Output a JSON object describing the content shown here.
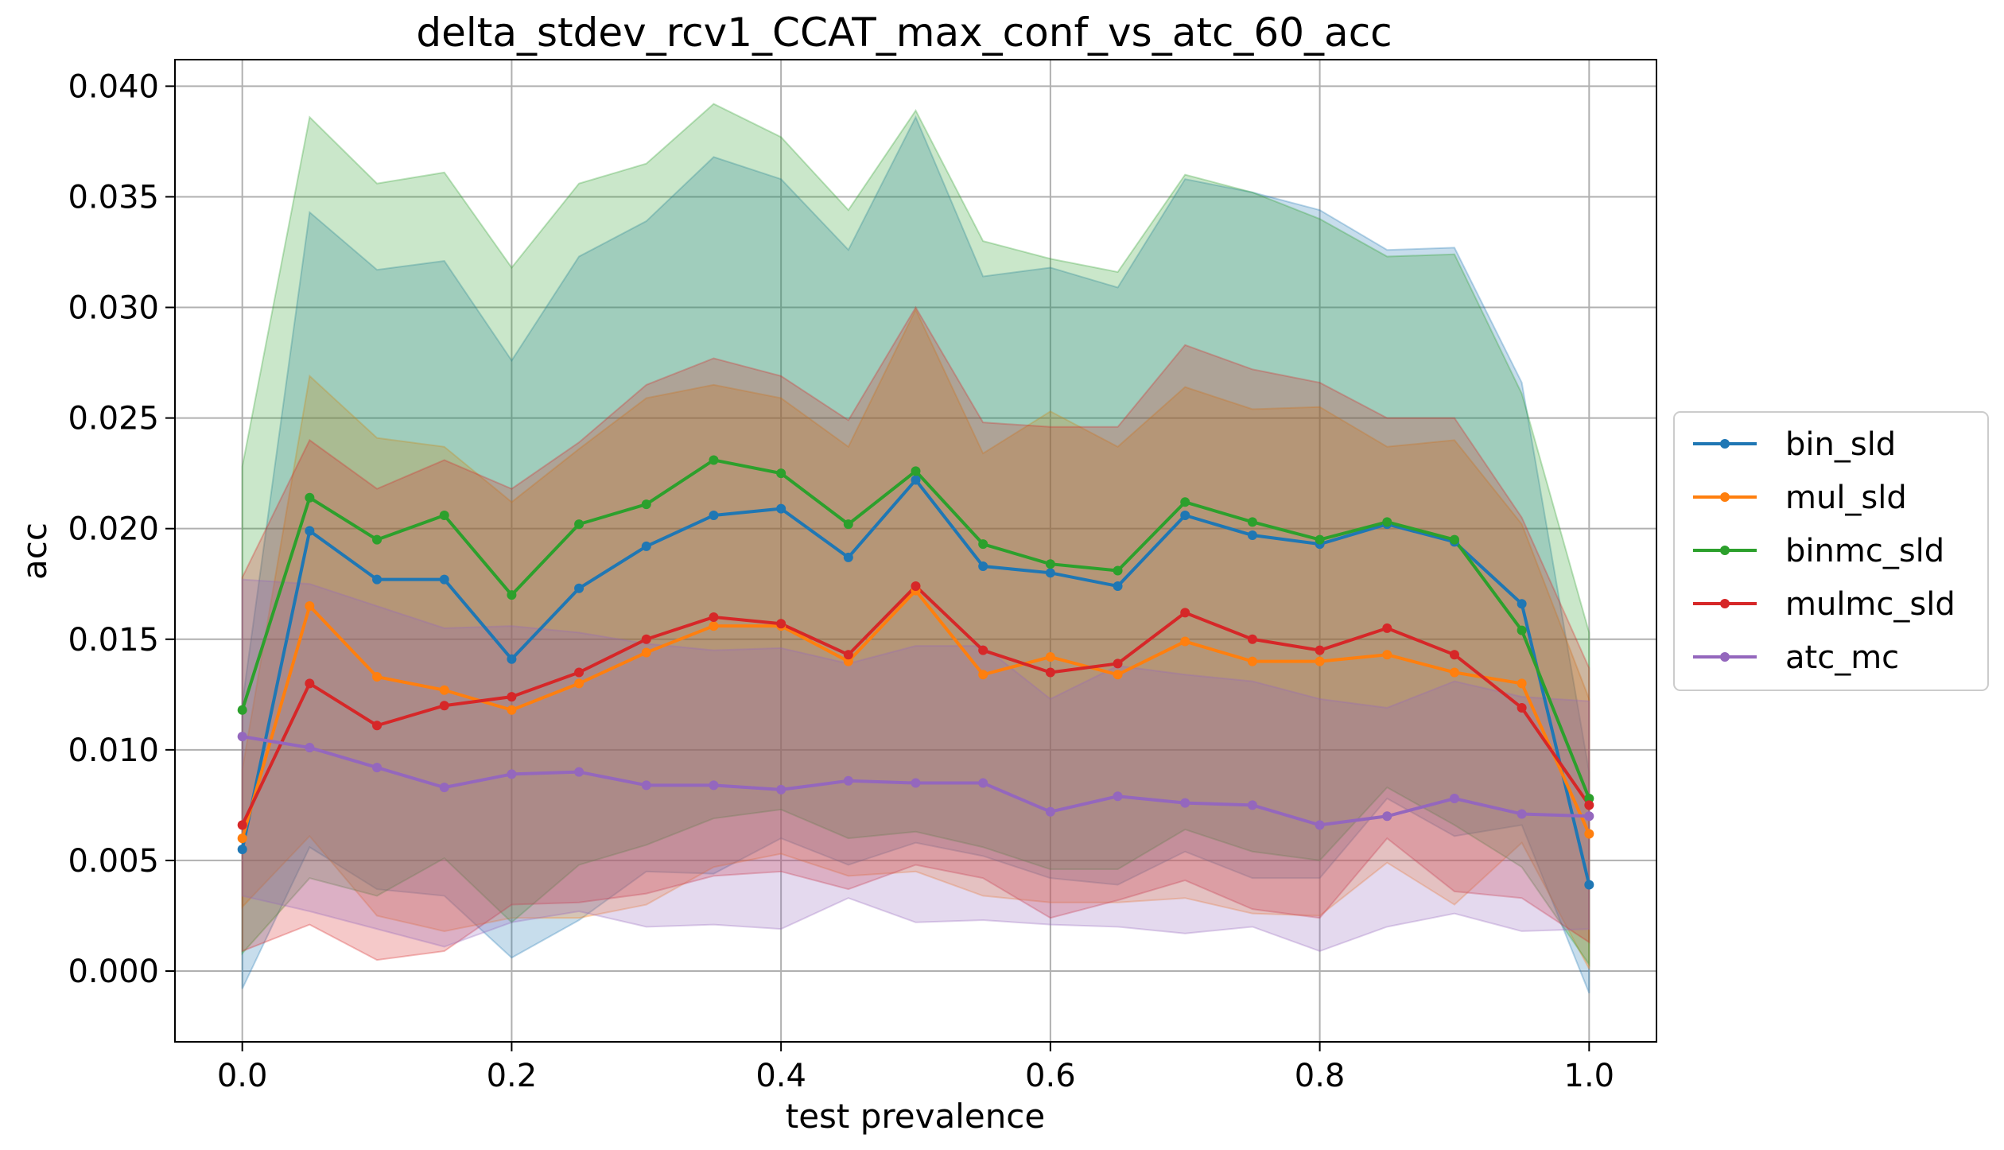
{
  "chart_data": {
    "type": "line",
    "title": "delta_stdev_rcv1_CCAT_max_conf_vs_atc_60_acc",
    "xlabel": "test prevalence",
    "ylabel": "acc",
    "xlim": [
      -0.05,
      1.05
    ],
    "ylim": [
      -0.0032,
      0.0412
    ],
    "grid": true,
    "legend_position": "right",
    "x": [
      0.0,
      0.05,
      0.1,
      0.15,
      0.2,
      0.25,
      0.3,
      0.35,
      0.4,
      0.45,
      0.5,
      0.55,
      0.6,
      0.65,
      0.7,
      0.75,
      0.8,
      0.85,
      0.9,
      0.95,
      1.0
    ],
    "x_ticks": [
      0.0,
      0.2,
      0.4,
      0.6,
      0.8,
      1.0
    ],
    "x_tick_labels": [
      "0.0",
      "0.2",
      "0.4",
      "0.6",
      "0.8",
      "1.0"
    ],
    "y_ticks": [
      0.0,
      0.005,
      0.01,
      0.015,
      0.02,
      0.025,
      0.03,
      0.035,
      0.04
    ],
    "y_tick_labels": [
      "0.000",
      "0.005",
      "0.010",
      "0.015",
      "0.020",
      "0.025",
      "0.030",
      "0.035",
      "0.040"
    ],
    "series": [
      {
        "name": "bin_sld",
        "color": "#1f77b4",
        "values": [
          0.0055,
          0.0199,
          0.0177,
          0.0177,
          0.0141,
          0.0173,
          0.0192,
          0.0206,
          0.0209,
          0.0187,
          0.0222,
          0.0183,
          0.018,
          0.0174,
          0.0206,
          0.0197,
          0.0193,
          0.0202,
          0.0194,
          0.0166,
          0.0039
        ],
        "upper": [
          0.0121,
          0.0343,
          0.0317,
          0.0321,
          0.0276,
          0.0323,
          0.0339,
          0.0368,
          0.0358,
          0.0326,
          0.0386,
          0.0314,
          0.0318,
          0.0309,
          0.0358,
          0.0352,
          0.0344,
          0.0326,
          0.0327,
          0.0266,
          0.009
        ],
        "lower": [
          -0.0008,
          0.0056,
          0.0037,
          0.0034,
          0.0006,
          0.0023,
          0.0045,
          0.0044,
          0.006,
          0.0048,
          0.0058,
          0.0052,
          0.0042,
          0.0039,
          0.0054,
          0.0042,
          0.0042,
          0.0078,
          0.0061,
          0.0066,
          -0.001
        ]
      },
      {
        "name": "mul_sld",
        "color": "#ff7f0e",
        "values": [
          0.006,
          0.0165,
          0.0133,
          0.0127,
          0.0118,
          0.013,
          0.0144,
          0.0156,
          0.0156,
          0.014,
          0.0172,
          0.0134,
          0.0142,
          0.0134,
          0.0149,
          0.014,
          0.014,
          0.0143,
          0.0135,
          0.013,
          0.0062
        ],
        "upper": [
          0.0091,
          0.0269,
          0.0241,
          0.0237,
          0.0212,
          0.0236,
          0.0259,
          0.0265,
          0.0259,
          0.0237,
          0.0299,
          0.0234,
          0.0253,
          0.0237,
          0.0264,
          0.0254,
          0.0255,
          0.0237,
          0.024,
          0.0202,
          0.0123
        ],
        "lower": [
          0.0029,
          0.0061,
          0.0025,
          0.0018,
          0.0024,
          0.0024,
          0.003,
          0.0047,
          0.0053,
          0.0043,
          0.0045,
          0.0034,
          0.0031,
          0.0031,
          0.0033,
          0.0026,
          0.0025,
          0.0049,
          0.003,
          0.0058,
          0.0001
        ]
      },
      {
        "name": "binmc_sld",
        "color": "#2ca02c",
        "values": [
          0.0118,
          0.0214,
          0.0195,
          0.0206,
          0.017,
          0.0202,
          0.0211,
          0.0231,
          0.0225,
          0.0202,
          0.0226,
          0.0193,
          0.0184,
          0.0181,
          0.0212,
          0.0203,
          0.0195,
          0.0203,
          0.0195,
          0.0154,
          0.0078
        ],
        "upper": [
          0.0228,
          0.0386,
          0.0356,
          0.0361,
          0.0318,
          0.0356,
          0.0365,
          0.0392,
          0.0377,
          0.0344,
          0.0389,
          0.033,
          0.0322,
          0.0316,
          0.036,
          0.0352,
          0.034,
          0.0323,
          0.0324,
          0.0261,
          0.0153
        ],
        "lower": [
          0.0008,
          0.0042,
          0.0034,
          0.0051,
          0.0022,
          0.0048,
          0.0057,
          0.0069,
          0.0073,
          0.006,
          0.0063,
          0.0056,
          0.0046,
          0.0046,
          0.0064,
          0.0054,
          0.005,
          0.0083,
          0.0066,
          0.0047,
          0.0003
        ]
      },
      {
        "name": "mulmc_sld",
        "color": "#d62728",
        "values": [
          0.0066,
          0.013,
          0.0111,
          0.012,
          0.0124,
          0.0135,
          0.015,
          0.016,
          0.0157,
          0.0143,
          0.0174,
          0.0145,
          0.0135,
          0.0139,
          0.0162,
          0.015,
          0.0145,
          0.0155,
          0.0143,
          0.0119,
          0.0075
        ],
        "upper": [
          0.0178,
          0.024,
          0.0218,
          0.0231,
          0.0218,
          0.0239,
          0.0265,
          0.0277,
          0.0269,
          0.0249,
          0.03,
          0.0248,
          0.0246,
          0.0246,
          0.0283,
          0.0272,
          0.0266,
          0.025,
          0.025,
          0.0205,
          0.0137
        ],
        "lower": [
          0.0009,
          0.0021,
          0.0005,
          0.0009,
          0.003,
          0.0031,
          0.0035,
          0.0043,
          0.0045,
          0.0037,
          0.0048,
          0.0042,
          0.0024,
          0.0032,
          0.0041,
          0.0028,
          0.0024,
          0.006,
          0.0036,
          0.0033,
          0.0013
        ]
      },
      {
        "name": "atc_mc",
        "color": "#9467bd",
        "values": [
          0.0106,
          0.0101,
          0.0092,
          0.0083,
          0.0089,
          0.009,
          0.0084,
          0.0084,
          0.0082,
          0.0086,
          0.0085,
          0.0085,
          0.0072,
          0.0079,
          0.0076,
          0.0075,
          0.0066,
          0.007,
          0.0078,
          0.0071,
          0.007
        ],
        "upper": [
          0.0177,
          0.0175,
          0.0165,
          0.0155,
          0.0156,
          0.0153,
          0.0148,
          0.0145,
          0.0146,
          0.0139,
          0.0147,
          0.0147,
          0.0123,
          0.0138,
          0.0134,
          0.0131,
          0.0123,
          0.0119,
          0.0131,
          0.0124,
          0.0122
        ],
        "lower": [
          0.0034,
          0.0027,
          0.0019,
          0.0011,
          0.0022,
          0.0027,
          0.002,
          0.0021,
          0.0019,
          0.0033,
          0.0022,
          0.0023,
          0.0021,
          0.002,
          0.0017,
          0.002,
          0.0009,
          0.002,
          0.0026,
          0.0018,
          0.0019
        ]
      }
    ]
  }
}
